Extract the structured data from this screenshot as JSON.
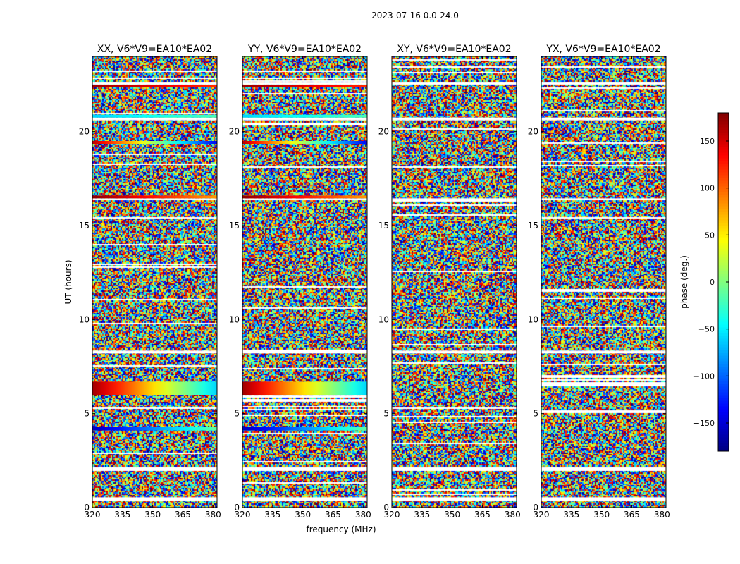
{
  "figure": {
    "suptitle": "2023-07-16 0.0-24.0"
  },
  "chart_data": {
    "type": "heatmap",
    "panels": [
      {
        "title": "XX, V6*V9=EA10*EA02",
        "pol": "XX"
      },
      {
        "title": "YY, V6*V9=EA10*EA02",
        "pol": "YY"
      },
      {
        "title": "XY, V6*V9=EA10*EA02",
        "pol": "XY"
      },
      {
        "title": "YX, V6*V9=EA10*EA02",
        "pol": "YX"
      }
    ],
    "xlabel": "frequency (MHz)",
    "ylabel": "UT (hours)",
    "xlim": [
      320,
      382
    ],
    "ylim": [
      0,
      24
    ],
    "xticks": [
      320,
      335,
      350,
      365,
      380
    ],
    "yticks": [
      0,
      5,
      10,
      15,
      20
    ],
    "colorbar": {
      "label": "phase (deg.)",
      "range": [
        -180,
        180
      ],
      "ticks": [
        -150,
        -100,
        -50,
        0,
        50,
        100,
        150
      ],
      "tick_labels": [
        "−150",
        "−100",
        "−50",
        "0",
        "50",
        "100",
        "150"
      ],
      "colormap": "jet"
    },
    "flagged_time_ranges_hours": [
      [
        0.35,
        0.55
      ],
      [
        1.95,
        2.15
      ],
      [
        8.2,
        8.35
      ],
      [
        16.35,
        16.45
      ],
      [
        20.6,
        20.75
      ],
      [
        22.5,
        22.62
      ]
    ],
    "coherent_features": [
      {
        "panels": [
          "XX",
          "YY"
        ],
        "t_hours": [
          4.1,
          4.3
        ],
        "phase_start_deg": -160,
        "phase_end_deg": -10
      },
      {
        "panels": [
          "XX",
          "YY"
        ],
        "t_hours": [
          6.0,
          6.7
        ],
        "phase_start_deg": 170,
        "phase_end_deg": -60
      },
      {
        "panels": [
          "XX",
          "YY"
        ],
        "t_hours": [
          16.45,
          16.6
        ],
        "phase_start_deg": 175,
        "phase_end_deg": 80
      },
      {
        "panels": [
          "XX",
          "YY"
        ],
        "t_hours": [
          19.35,
          19.5
        ],
        "phase_start_deg": 160,
        "phase_end_deg": -140
      },
      {
        "panels": [
          "XX",
          "YY"
        ],
        "t_hours": [
          20.75,
          20.9
        ],
        "phase_start_deg": -60,
        "phase_end_deg": -20
      },
      {
        "panels": [
          "XX",
          "YY"
        ],
        "t_hours": [
          22.35,
          22.5
        ],
        "phase_start_deg": 170,
        "phase_end_deg": 120
      }
    ],
    "background": "noise-like phase, uniform over −180 to 180 deg"
  }
}
